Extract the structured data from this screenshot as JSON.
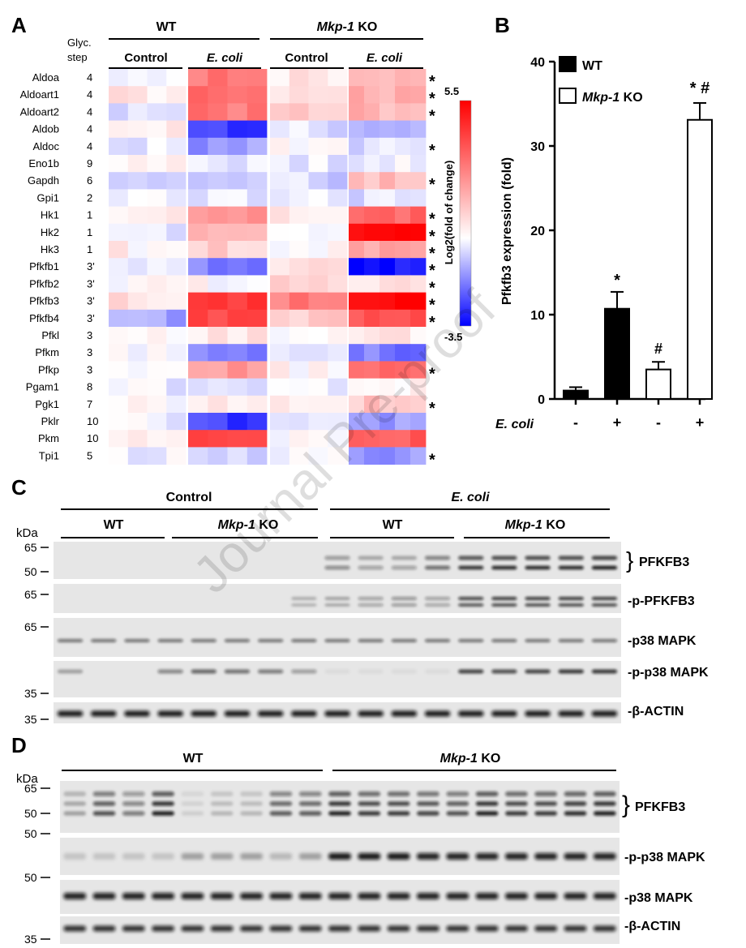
{
  "watermark": "Journal Pre-proof",
  "panelA": {
    "letter": "A",
    "glyc_header_1": "Glyc.",
    "glyc_header_2": "step",
    "group_wt": "WT",
    "group_ko_italic": "Mkp-1",
    "group_ko_suffix": " KO",
    "sub_control": "Control",
    "sub_ecoli": "E. coli",
    "genes": [
      "Aldoa",
      "Aldoart1",
      "Aldoart2",
      "Aldob",
      "Aldoc",
      "Eno1b",
      "Gapdh",
      "Gpi1",
      "Hk1",
      "Hk2",
      "Hk3",
      "Pfkfb1",
      "Pfkfb2",
      "Pfkfb3",
      "Pfkfb4",
      "Pfkl",
      "Pfkm",
      "Pfkp",
      "Pgam1",
      "Pgk1",
      "Pklr",
      "Pkm",
      "Tpi1"
    ],
    "steps": [
      "4",
      "4",
      "4",
      "4",
      "4",
      "9",
      "6",
      "2",
      "1",
      "1",
      "1",
      "3'",
      "3'",
      "3'",
      "3'",
      "3",
      "3",
      "3",
      "8",
      "7",
      "10",
      "10",
      "5"
    ],
    "significant": [
      true,
      true,
      true,
      false,
      true,
      false,
      true,
      false,
      true,
      true,
      true,
      true,
      true,
      true,
      true,
      false,
      false,
      true,
      false,
      true,
      false,
      false,
      true
    ],
    "star": "*",
    "colorbar_max": "5.5",
    "colorbar_min": "-3.5",
    "colorbar_label": "Log2(fold of change)",
    "colors": {
      "high": "#ff0000",
      "low": "#0000ff",
      "mid": "#ffffff"
    },
    "heatmap": {
      "wt_control": [
        0.2,
        0.5,
        -0.3,
        0.3,
        -0.4,
        0.1,
        -0.8,
        0,
        0.3,
        -0.2,
        0.3,
        -0.5,
        0.1,
        0.6,
        -1.2,
        0.2,
        -0.2,
        0.1,
        -0.3,
        0.2,
        -0.2,
        0.2,
        -0.1
      ],
      "wt_ecoli": [
        2.8,
        3.2,
        2.9,
        -2.8,
        -1.4,
        -0.5,
        -0.4,
        -0.2,
        2.2,
        1.8,
        1.0,
        -1.8,
        0.1,
        4.2,
        4.0,
        0.6,
        -1.9,
        2.2,
        -0.5,
        0.3,
        -2.6,
        4.1,
        -0.7
      ],
      "ko_control": [
        0.5,
        0.8,
        1.0,
        -0.4,
        0.2,
        -0.4,
        -0.6,
        -0.2,
        0.3,
        0.2,
        0.2,
        0.6,
        1.0,
        2.8,
        1.2,
        0.2,
        -0.3,
        0.2,
        0.0,
        0.4,
        0.0,
        0.2,
        0.0
      ],
      "ko_ecoli": [
        1.7,
        1.8,
        1.6,
        -1.0,
        -0.5,
        -0.2,
        1.5,
        -0.5,
        3.2,
        5.2,
        2.0,
        -3.3,
        0.5,
        5.4,
        3.6,
        0.5,
        -1.8,
        3.0,
        0.2,
        1.2,
        -1.3,
        3.6,
        -1.3
      ]
    }
  },
  "panelB": {
    "letter": "B",
    "ylabel": "Pfkfb3 expression (fold)",
    "yticks": [
      "0",
      "10",
      "20",
      "30",
      "40"
    ],
    "legend": [
      {
        "name": "WT",
        "italic_part": "",
        "color": "#000000"
      },
      {
        "name": " KO",
        "italic_part": "Mkp-1",
        "color": "#ffffff"
      }
    ],
    "xlabel": "E. coli",
    "x_signs": [
      "-",
      "+",
      "-",
      "+"
    ],
    "annotations": [
      "*",
      "#",
      "* #"
    ],
    "chart_data": {
      "type": "bar",
      "categories": [
        "WT -",
        "WT +",
        "Mkp-1 KO -",
        "Mkp-1 KO +"
      ],
      "values": [
        1.0,
        10.7,
        3.5,
        33.1
      ],
      "errors": [
        0.4,
        2.0,
        0.9,
        2.0
      ],
      "ylim": [
        0,
        40
      ]
    }
  },
  "panelC": {
    "letter": "C",
    "top_left": "Control",
    "top_right": "E. coli",
    "sub_wt": "WT",
    "sub_ko_italic": "Mkp-1",
    "sub_ko_suffix": " KO",
    "kda": "kDa",
    "markers": [
      "65",
      "50",
      "65",
      "65",
      "35",
      "35"
    ],
    "bands": [
      "PFKFB3",
      "-p-PFKFB3",
      "-p38 MAPK",
      "-p-p38 MAPK",
      "-β-ACTIN"
    ],
    "brace": "}"
  },
  "panelD": {
    "letter": "D",
    "group_wt": "WT",
    "group_ko_italic": "Mkp-1",
    "group_ko_suffix": " KO",
    "kda": "kDa",
    "markers": [
      "65",
      "50",
      "50",
      "50",
      "35"
    ],
    "bands": [
      "PFKFB3",
      "-p-p38 MAPK",
      "-p38 MAPK",
      "-β-ACTIN"
    ],
    "brace": "}"
  }
}
